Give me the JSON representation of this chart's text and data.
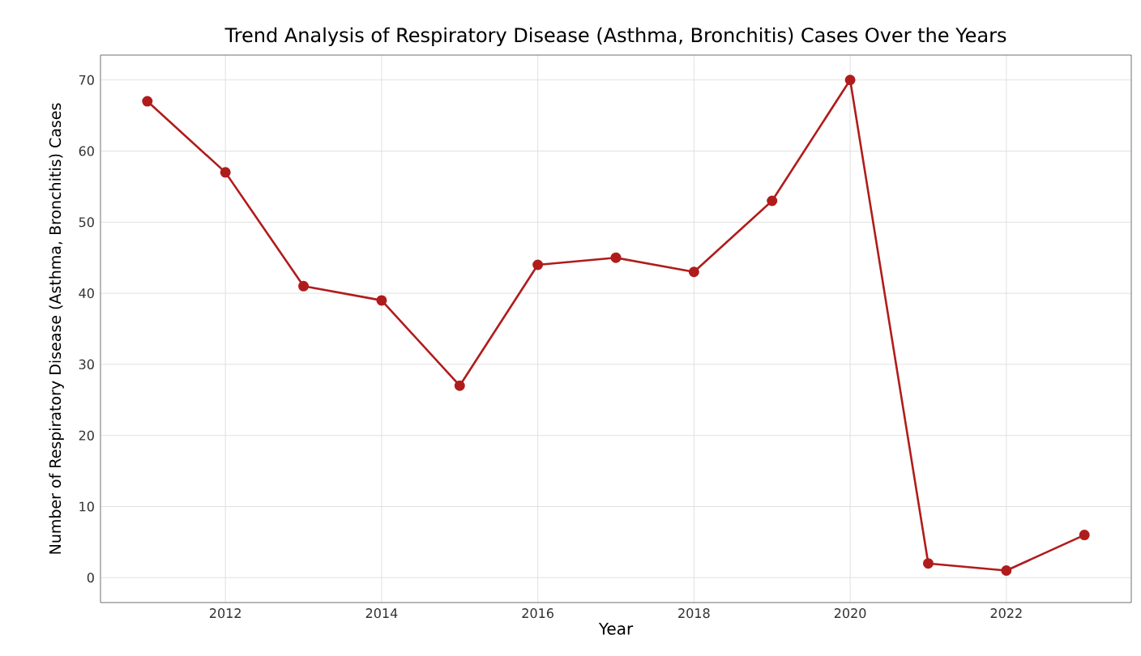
{
  "chart_data": {
    "type": "line",
    "title": "Trend Analysis of Respiratory Disease (Asthma, Bronchitis) Cases Over the Years",
    "xlabel": "Year",
    "ylabel": "Number of Respiratory Disease (Asthma, Bronchitis) Cases",
    "x": [
      2011,
      2012,
      2013,
      2014,
      2015,
      2016,
      2017,
      2018,
      2019,
      2020,
      2021,
      2022,
      2023
    ],
    "values": [
      67,
      57,
      41,
      39,
      27,
      44,
      45,
      43,
      53,
      70,
      2,
      1,
      6
    ],
    "color": "#b01c1c",
    "marker": "circle",
    "line_style": "solid",
    "grid": true,
    "xlim": [
      2010.4,
      2023.6
    ],
    "ylim": [
      -3.5,
      73.5
    ],
    "xticks": [
      2012,
      2014,
      2016,
      2018,
      2020,
      2022
    ],
    "yticks": [
      0,
      10,
      20,
      30,
      40,
      50,
      60,
      70
    ]
  }
}
